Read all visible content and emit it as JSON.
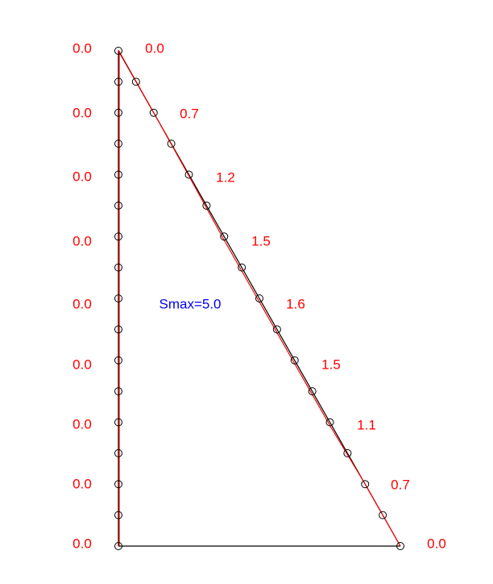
{
  "left_labels": [
    "0.0",
    "0.0",
    "0.0",
    "0.0",
    "0.0",
    "0.0",
    "0.0",
    "0.0",
    "0.0"
  ],
  "diagonal_labels": [
    "0.0",
    "0.7",
    "1.2",
    "1.5",
    "1.6",
    "1.5",
    "1.1",
    "0.7",
    "0.0"
  ],
  "annotation": "Smax=5.0"
}
